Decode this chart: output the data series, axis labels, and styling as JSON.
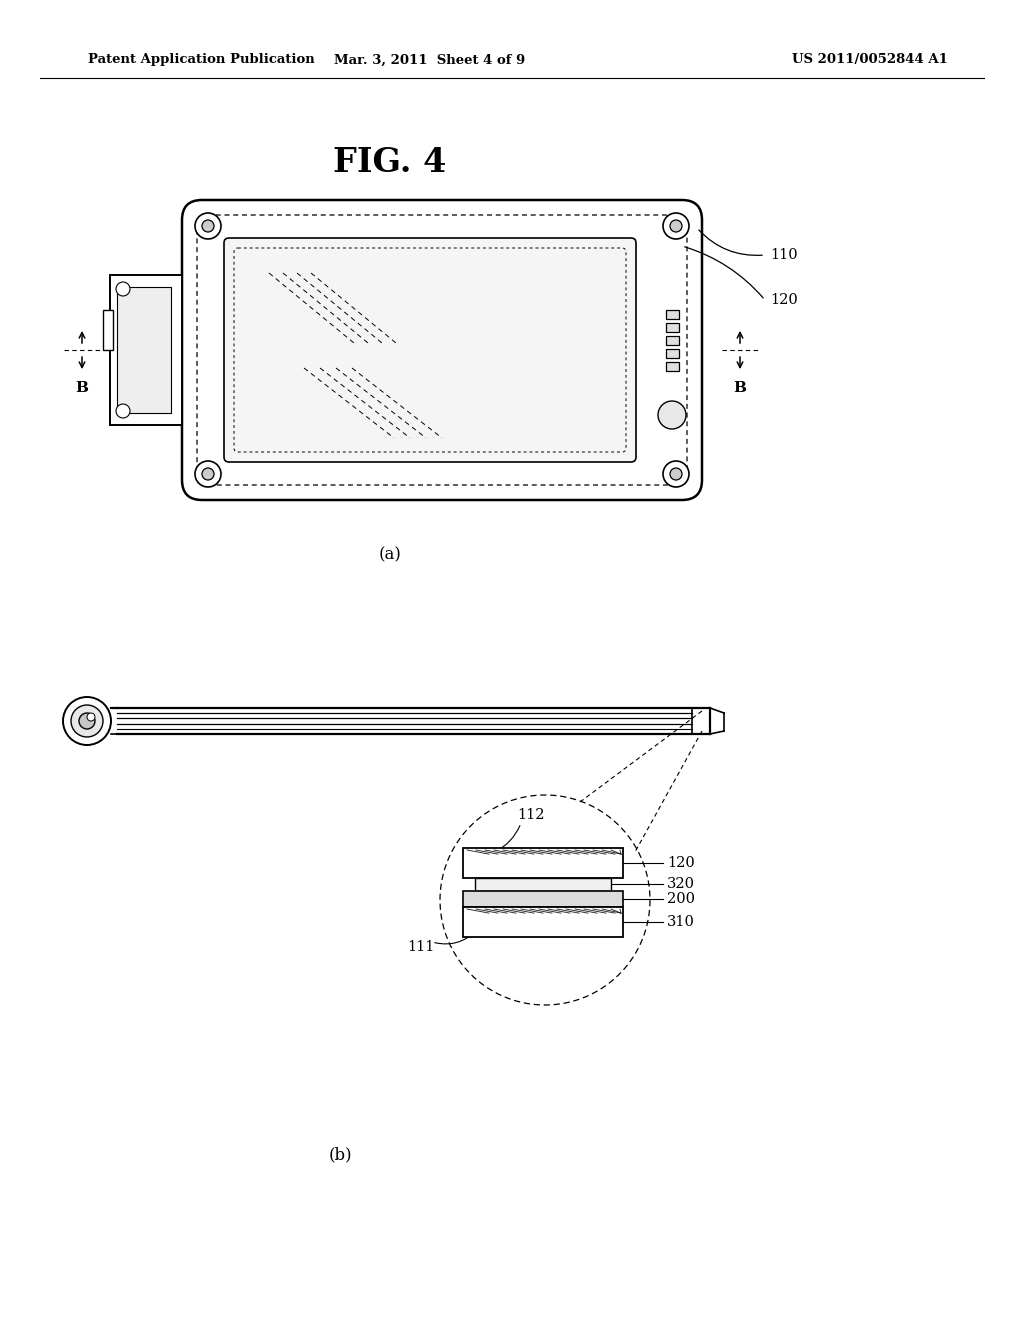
{
  "background_color": "#ffffff",
  "header_left": "Patent Application Publication",
  "header_center": "Mar. 3, 2011  Sheet 4 of 9",
  "header_right": "US 2011/0052844 A1",
  "fig_label": "FIG. 4",
  "caption_a": "(a)",
  "caption_b": "(b)",
  "label_110": "110",
  "label_120": "120",
  "label_112": "112",
  "label_111": "111",
  "label_320": "320",
  "label_200": "200",
  "label_310": "310",
  "label_B_left": "B",
  "label_B_right": "B"
}
